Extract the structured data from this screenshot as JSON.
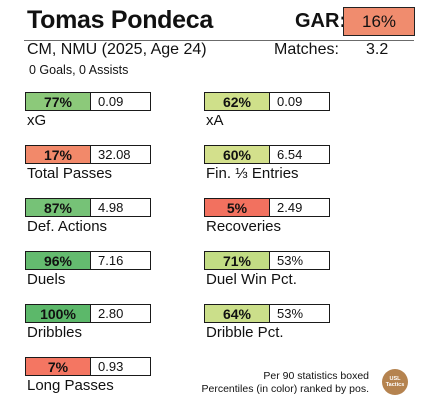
{
  "header": {
    "player_name": "Tomas Pondeca",
    "gar_label": "GAR:",
    "gar_value": "16%",
    "gar_color": "#f08c6e",
    "subtitle": "CM, NMU (2025, Age 24)",
    "matches_label": "Matches:",
    "matches_value": "3.2",
    "goals_assists": "0 Goals,  0 Assists"
  },
  "stats_left": [
    {
      "label": "xG",
      "percentile": "77%",
      "percentile_value": 77,
      "value": "0.09",
      "color": "#8cc97a"
    },
    {
      "label": "Total Passes",
      "percentile": "17%",
      "percentile_value": 17,
      "value": "32.08",
      "color": "#f2896a"
    },
    {
      "label": "Def. Actions",
      "percentile": "87%",
      "percentile_value": 87,
      "value": "4.98",
      "color": "#76c277"
    },
    {
      "label": "Duels",
      "percentile": "96%",
      "percentile_value": 96,
      "value": "7.16",
      "color": "#64bb6f"
    },
    {
      "label": "Dribbles",
      "percentile": "100%",
      "percentile_value": 100,
      "value": "2.80",
      "color": "#5cb86a"
    },
    {
      "label": "Long Passes",
      "percentile": "7%",
      "percentile_value": 7,
      "value": "0.93",
      "color": "#f47662"
    }
  ],
  "stats_right": [
    {
      "label": "xA",
      "percentile": "62%",
      "percentile_value": 62,
      "value": "0.09",
      "color": "#cfe08a"
    },
    {
      "label": "Fin. ⅓ Entries",
      "percentile": "60%",
      "percentile_value": 60,
      "value": "6.54",
      "color": "#d3e08c"
    },
    {
      "label": "Recoveries",
      "percentile": "5%",
      "percentile_value": 5,
      "value": "2.49",
      "color": "#f2715f"
    },
    {
      "label": "Duel Win Pct.",
      "percentile": "71%",
      "percentile_value": 71,
      "value": "53%",
      "color": "#c2dc84"
    },
    {
      "label": "Dribble Pct.",
      "percentile": "64%",
      "percentile_value": 64,
      "value": "53%",
      "color": "#cbdf8a"
    }
  ],
  "footnotes": {
    "line1": "Per 90 statistics boxed",
    "line2": "Percentiles (in color) ranked by pos."
  },
  "logo": {
    "line1": "USL",
    "line2": "Tactics",
    "color": "#b5834f"
  }
}
